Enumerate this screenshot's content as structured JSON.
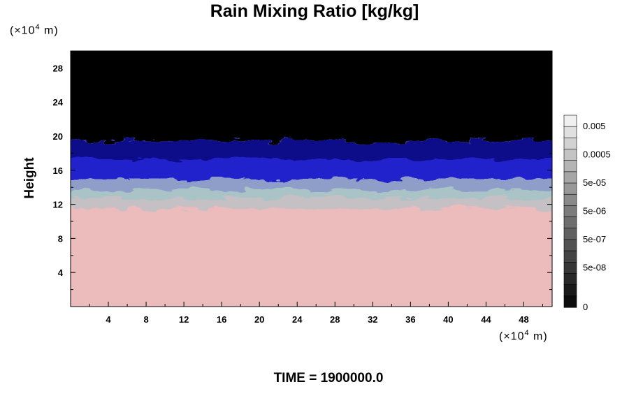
{
  "chart_data": {
    "type": "heatmap",
    "title": "Rain Mixing Ratio [kg/kg]",
    "ylabel": "Height",
    "x_unit": "(×10",
    "y_unit": "(×10",
    "unit_exponent": "4",
    "unit_suffix": "m)",
    "xlim": [
      0,
      51
    ],
    "ylim": [
      0,
      30
    ],
    "x_ticks": [
      4,
      8,
      12,
      16,
      20,
      24,
      28,
      32,
      36,
      40,
      44,
      48
    ],
    "y_ticks": [
      4,
      8,
      12,
      16,
      20,
      24,
      28
    ],
    "layers": [
      {
        "y_min": 0,
        "y_max": 11.5,
        "color": "#ecbcbc"
      },
      {
        "y_min": 11.5,
        "y_max": 12.7,
        "color": "#c4c0c4"
      },
      {
        "y_min": 12.7,
        "y_max": 13.7,
        "color": "#a9c3c6"
      },
      {
        "y_min": 13.7,
        "y_max": 15.0,
        "color": "#8f9ec8"
      },
      {
        "y_min": 15.0,
        "y_max": 17.3,
        "color": "#2020cc"
      },
      {
        "y_min": 17.3,
        "y_max": 19.5,
        "color": "#0a0a8a"
      },
      {
        "y_min": 19.5,
        "y_max": 30,
        "color": "#000000"
      }
    ],
    "colorbar": {
      "labels": [
        "0.005",
        "0.0005",
        "5e-05",
        "5e-06",
        "5e-07",
        "5e-08",
        "0"
      ],
      "colors": [
        "#f0f0f0",
        "#e0e0e0",
        "#d2d2d2",
        "#c4c4c4",
        "#b4b4b4",
        "#a6a6a6",
        "#989898",
        "#8a8a8a",
        "#7c7c7c",
        "#6e6e6e",
        "#606060",
        "#525252",
        "#444444",
        "#363636",
        "#282828",
        "#1a1a1a",
        "#0c0c0c"
      ]
    }
  },
  "time_label": "TIME = 1900000.0"
}
